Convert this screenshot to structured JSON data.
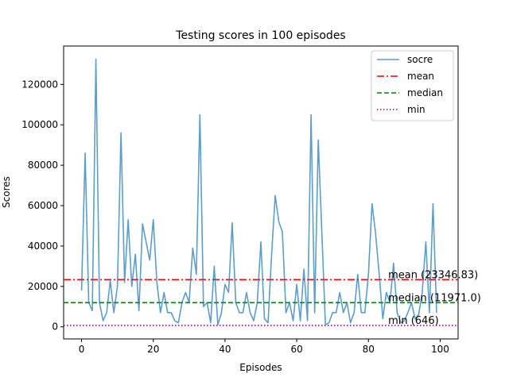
{
  "chart_data": {
    "type": "line",
    "title": "Testing scores in 100 episodes",
    "xlabel": "Episodes",
    "ylabel": "Scores",
    "xlim": [
      -5,
      105
    ],
    "ylim": [
      -6000,
      139000
    ],
    "xticks": [
      0,
      20,
      40,
      60,
      80,
      100
    ],
    "yticks": [
      0,
      20000,
      40000,
      60000,
      80000,
      100000,
      120000
    ],
    "legend_position": "top-right",
    "series": [
      {
        "name": "socre",
        "color": "#1f77b4",
        "style": "solid",
        "x": [
          0,
          1,
          2,
          3,
          4,
          5,
          6,
          7,
          8,
          9,
          10,
          11,
          12,
          13,
          14,
          15,
          16,
          17,
          18,
          19,
          20,
          21,
          22,
          23,
          24,
          25,
          26,
          27,
          28,
          29,
          30,
          31,
          32,
          33,
          34,
          35,
          36,
          37,
          38,
          39,
          40,
          41,
          42,
          43,
          44,
          45,
          46,
          47,
          48,
          49,
          50,
          51,
          52,
          53,
          54,
          55,
          56,
          57,
          58,
          59,
          60,
          61,
          62,
          63,
          64,
          65,
          66,
          67,
          68,
          69,
          70,
          71,
          72,
          73,
          74,
          75,
          76,
          77,
          78,
          79,
          80,
          81,
          82,
          83,
          84,
          85,
          86,
          87,
          88,
          89,
          90,
          91,
          92,
          93,
          94,
          95,
          96,
          97,
          98,
          99
        ],
        "values": [
          18000,
          86000,
          12000,
          8000,
          132500,
          12000,
          3000,
          7000,
          23000,
          7000,
          20000,
          96000,
          22000,
          53000,
          20000,
          36000,
          8000,
          51000,
          42000,
          33000,
          53000,
          22000,
          7000,
          17000,
          7000,
          7000,
          3000,
          2000,
          12000,
          17000,
          12000,
          39000,
          26000,
          105000,
          10000,
          12000,
          2000,
          30000,
          1000,
          7000,
          21000,
          17000,
          51500,
          12000,
          7000,
          7000,
          17000,
          7000,
          3000,
          12000,
          42000,
          4000,
          2000,
          36000,
          65000,
          52000,
          47000,
          7000,
          12000,
          3000,
          21000,
          3000,
          28500,
          3000,
          105000,
          7000,
          92500,
          47000,
          1000,
          2000,
          7000,
          7000,
          17000,
          7000,
          12000,
          2000,
          7000,
          26000,
          7000,
          7000,
          26000,
          61000,
          46000,
          26000,
          4000,
          17000,
          12000,
          31500,
          7000,
          2000,
          3000,
          7000,
          12000,
          4000,
          6000,
          17000,
          42000,
          7000,
          61000,
          7000
        ]
      }
    ],
    "reference_lines": [
      {
        "name": "mean",
        "value": 23346.83,
        "color": "#ff0000",
        "style": "dashdot",
        "label": "mean (23346.83)"
      },
      {
        "name": "median",
        "value": 11971.0,
        "color": "#008000",
        "style": "dashed",
        "label": "median (11971.0)"
      },
      {
        "name": "min",
        "value": 646,
        "color": "#9400d3",
        "style": "dotted",
        "label": "min (646)"
      }
    ]
  }
}
